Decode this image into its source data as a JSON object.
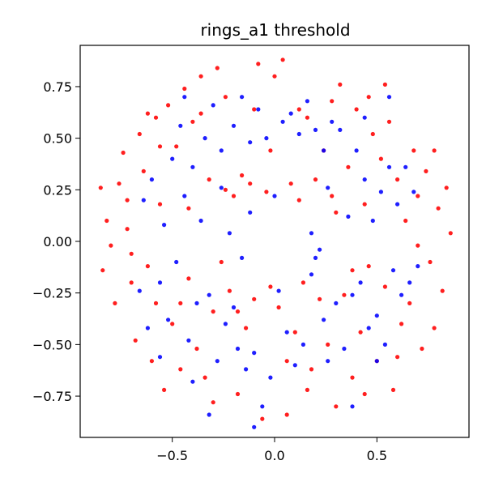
{
  "chart_data": {
    "type": "scatter",
    "title": "rings_a1 threshold",
    "xlabel": "",
    "ylabel": "",
    "xlim": [
      -0.95,
      0.95
    ],
    "ylim": [
      -0.95,
      0.95
    ],
    "x_ticks": [
      -0.5,
      0.0,
      0.5
    ],
    "x_tick_labels": [
      "−0.5",
      "0.0",
      "0.5"
    ],
    "y_ticks": [
      0.75,
      0.5,
      0.25,
      0.0,
      -0.25,
      -0.5,
      -0.75
    ],
    "y_tick_labels": [
      "0.75",
      "0.50",
      "0.25",
      "0.00",
      "−0.25",
      "−0.50",
      "−0.75"
    ],
    "grid": false,
    "colors": {
      "red": "#ff0000",
      "blue": "#0000ff"
    },
    "series": [
      {
        "color": "#ff0000",
        "points": [
          [
            -0.85,
            0.26
          ],
          [
            -0.82,
            0.1
          ],
          [
            -0.8,
            -0.02
          ],
          [
            -0.78,
            -0.3
          ],
          [
            -0.76,
            0.28
          ],
          [
            -0.74,
            0.43
          ],
          [
            -0.72,
            0.06
          ],
          [
            -0.7,
            -0.2
          ],
          [
            -0.68,
            -0.48
          ],
          [
            -0.66,
            0.52
          ],
          [
            -0.64,
            0.34
          ],
          [
            -0.62,
            -0.12
          ],
          [
            -0.6,
            -0.58
          ],
          [
            -0.58,
            0.6
          ],
          [
            -0.56,
            0.18
          ],
          [
            -0.54,
            -0.72
          ],
          [
            -0.52,
            0.66
          ],
          [
            -0.5,
            -0.4
          ],
          [
            -0.48,
            0.46
          ],
          [
            -0.46,
            -0.3
          ],
          [
            -0.44,
            0.74
          ],
          [
            -0.42,
            -0.18
          ],
          [
            -0.4,
            0.58
          ],
          [
            -0.38,
            -0.52
          ],
          [
            -0.36,
            0.8
          ],
          [
            -0.34,
            -0.66
          ],
          [
            -0.32,
            0.3
          ],
          [
            -0.3,
            -0.78
          ],
          [
            -0.28,
            0.84
          ],
          [
            -0.26,
            -0.1
          ],
          [
            -0.24,
            0.25
          ],
          [
            -0.22,
            -0.24
          ],
          [
            -0.2,
            0.22
          ],
          [
            -0.18,
            -0.34
          ],
          [
            -0.16,
            0.32
          ],
          [
            -0.14,
            -0.42
          ],
          [
            -0.12,
            0.28
          ],
          [
            -0.1,
            -0.28
          ],
          [
            -0.08,
            0.86
          ],
          [
            -0.06,
            -0.86
          ],
          [
            -0.04,
            0.24
          ],
          [
            -0.02,
            -0.22
          ],
          [
            0.0,
            0.8
          ],
          [
            0.02,
            -0.32
          ],
          [
            0.04,
            0.88
          ],
          [
            0.06,
            -0.84
          ],
          [
            0.08,
            0.28
          ],
          [
            0.1,
            -0.44
          ],
          [
            0.12,
            0.2
          ],
          [
            0.14,
            -0.2
          ],
          [
            0.16,
            0.6
          ],
          [
            0.18,
            -0.62
          ],
          [
            0.2,
            0.3
          ],
          [
            0.22,
            -0.28
          ],
          [
            0.24,
            0.44
          ],
          [
            0.26,
            -0.5
          ],
          [
            0.28,
            0.22
          ],
          [
            0.3,
            -0.8
          ],
          [
            0.32,
            0.76
          ],
          [
            0.34,
            -0.26
          ],
          [
            0.36,
            0.36
          ],
          [
            0.38,
            -0.66
          ],
          [
            0.4,
            0.64
          ],
          [
            0.42,
            -0.44
          ],
          [
            0.44,
            0.18
          ],
          [
            0.46,
            -0.12
          ],
          [
            0.48,
            0.52
          ],
          [
            0.5,
            -0.58
          ],
          [
            0.52,
            0.4
          ],
          [
            0.54,
            -0.22
          ],
          [
            0.56,
            0.58
          ],
          [
            0.58,
            -0.72
          ],
          [
            0.6,
            0.3
          ],
          [
            0.62,
            -0.4
          ],
          [
            0.64,
            0.1
          ],
          [
            0.66,
            -0.3
          ],
          [
            0.68,
            0.44
          ],
          [
            0.7,
            -0.02
          ],
          [
            0.72,
            -0.52
          ],
          [
            0.74,
            0.34
          ],
          [
            0.76,
            -0.1
          ],
          [
            0.78,
            -0.42
          ],
          [
            0.8,
            0.16
          ],
          [
            0.82,
            -0.24
          ],
          [
            0.84,
            0.26
          ],
          [
            0.86,
            0.04
          ],
          [
            -0.62,
            0.62
          ],
          [
            -0.36,
            0.62
          ],
          [
            -0.24,
            0.7
          ],
          [
            0.28,
            0.68
          ],
          [
            0.46,
            0.7
          ],
          [
            0.6,
            -0.56
          ],
          [
            -0.46,
            -0.62
          ],
          [
            -0.56,
            0.46
          ],
          [
            0.7,
            0.22
          ],
          [
            -0.7,
            -0.06
          ],
          [
            -0.3,
            -0.34
          ],
          [
            0.3,
            0.14
          ],
          [
            0.38,
            -0.14
          ],
          [
            -0.42,
            0.16
          ],
          [
            0.16,
            -0.72
          ],
          [
            -0.18,
            -0.74
          ],
          [
            0.54,
            0.76
          ],
          [
            -0.58,
            -0.3
          ],
          [
            0.12,
            0.64
          ],
          [
            -0.1,
            0.64
          ],
          [
            0.44,
            -0.74
          ],
          [
            -0.72,
            0.2
          ],
          [
            0.78,
            0.44
          ],
          [
            -0.84,
            -0.14
          ],
          [
            0.06,
            -0.58
          ],
          [
            -0.02,
            0.44
          ]
        ]
      },
      {
        "color": "#0000ff",
        "points": [
          [
            -0.66,
            -0.24
          ],
          [
            -0.64,
            0.2
          ],
          [
            -0.62,
            -0.42
          ],
          [
            -0.6,
            0.3
          ],
          [
            -0.56,
            -0.2
          ],
          [
            -0.54,
            0.08
          ],
          [
            -0.52,
            -0.38
          ],
          [
            -0.5,
            0.4
          ],
          [
            -0.48,
            -0.1
          ],
          [
            -0.46,
            0.56
          ],
          [
            -0.44,
            0.22
          ],
          [
            -0.42,
            -0.48
          ],
          [
            -0.4,
            0.36
          ],
          [
            -0.38,
            -0.3
          ],
          [
            -0.36,
            0.1
          ],
          [
            -0.34,
            0.5
          ],
          [
            -0.32,
            -0.26
          ],
          [
            -0.3,
            0.66
          ],
          [
            -0.28,
            -0.58
          ],
          [
            -0.26,
            0.44
          ],
          [
            -0.24,
            -0.4
          ],
          [
            -0.22,
            0.04
          ],
          [
            -0.2,
            0.56
          ],
          [
            -0.18,
            -0.52
          ],
          [
            -0.16,
            0.7
          ],
          [
            -0.14,
            -0.62
          ],
          [
            -0.12,
            0.48
          ],
          [
            -0.1,
            -0.54
          ],
          [
            -0.08,
            0.64
          ],
          [
            -0.06,
            -0.8
          ],
          [
            -0.04,
            0.5
          ],
          [
            -0.02,
            -0.66
          ],
          [
            0.0,
            0.22
          ],
          [
            0.02,
            -0.24
          ],
          [
            0.04,
            0.58
          ],
          [
            0.06,
            -0.44
          ],
          [
            0.08,
            0.62
          ],
          [
            0.1,
            -0.6
          ],
          [
            0.12,
            0.52
          ],
          [
            0.14,
            -0.5
          ],
          [
            0.16,
            0.68
          ],
          [
            0.18,
            -0.16
          ],
          [
            0.2,
            0.54
          ],
          [
            0.22,
            -0.04
          ],
          [
            0.24,
            0.44
          ],
          [
            0.26,
            -0.58
          ],
          [
            0.28,
            0.58
          ],
          [
            0.3,
            -0.3
          ],
          [
            0.32,
            0.54
          ],
          [
            0.34,
            -0.52
          ],
          [
            0.36,
            0.12
          ],
          [
            0.38,
            -0.26
          ],
          [
            0.4,
            0.44
          ],
          [
            0.42,
            -0.2
          ],
          [
            0.44,
            0.3
          ],
          [
            0.46,
            -0.42
          ],
          [
            0.48,
            0.1
          ],
          [
            0.5,
            -0.36
          ],
          [
            0.52,
            0.24
          ],
          [
            0.54,
            -0.5
          ],
          [
            0.56,
            0.36
          ],
          [
            0.58,
            -0.14
          ],
          [
            0.6,
            0.18
          ],
          [
            0.62,
            -0.26
          ],
          [
            0.64,
            0.36
          ],
          [
            0.66,
            -0.2
          ],
          [
            0.68,
            0.24
          ],
          [
            0.7,
            -0.12
          ],
          [
            0.56,
            0.7
          ],
          [
            -0.44,
            0.7
          ],
          [
            -0.32,
            -0.84
          ],
          [
            -0.1,
            -0.9
          ],
          [
            0.38,
            -0.8
          ],
          [
            0.18,
            0.04
          ],
          [
            0.2,
            -0.08
          ],
          [
            -0.16,
            -0.08
          ],
          [
            -0.12,
            0.14
          ],
          [
            -0.56,
            -0.56
          ],
          [
            0.44,
            0.6
          ],
          [
            -0.26,
            0.26
          ],
          [
            0.26,
            0.26
          ],
          [
            -0.2,
            -0.32
          ],
          [
            0.24,
            -0.38
          ],
          [
            -0.4,
            -0.68
          ],
          [
            0.5,
            -0.58
          ]
        ]
      }
    ]
  }
}
